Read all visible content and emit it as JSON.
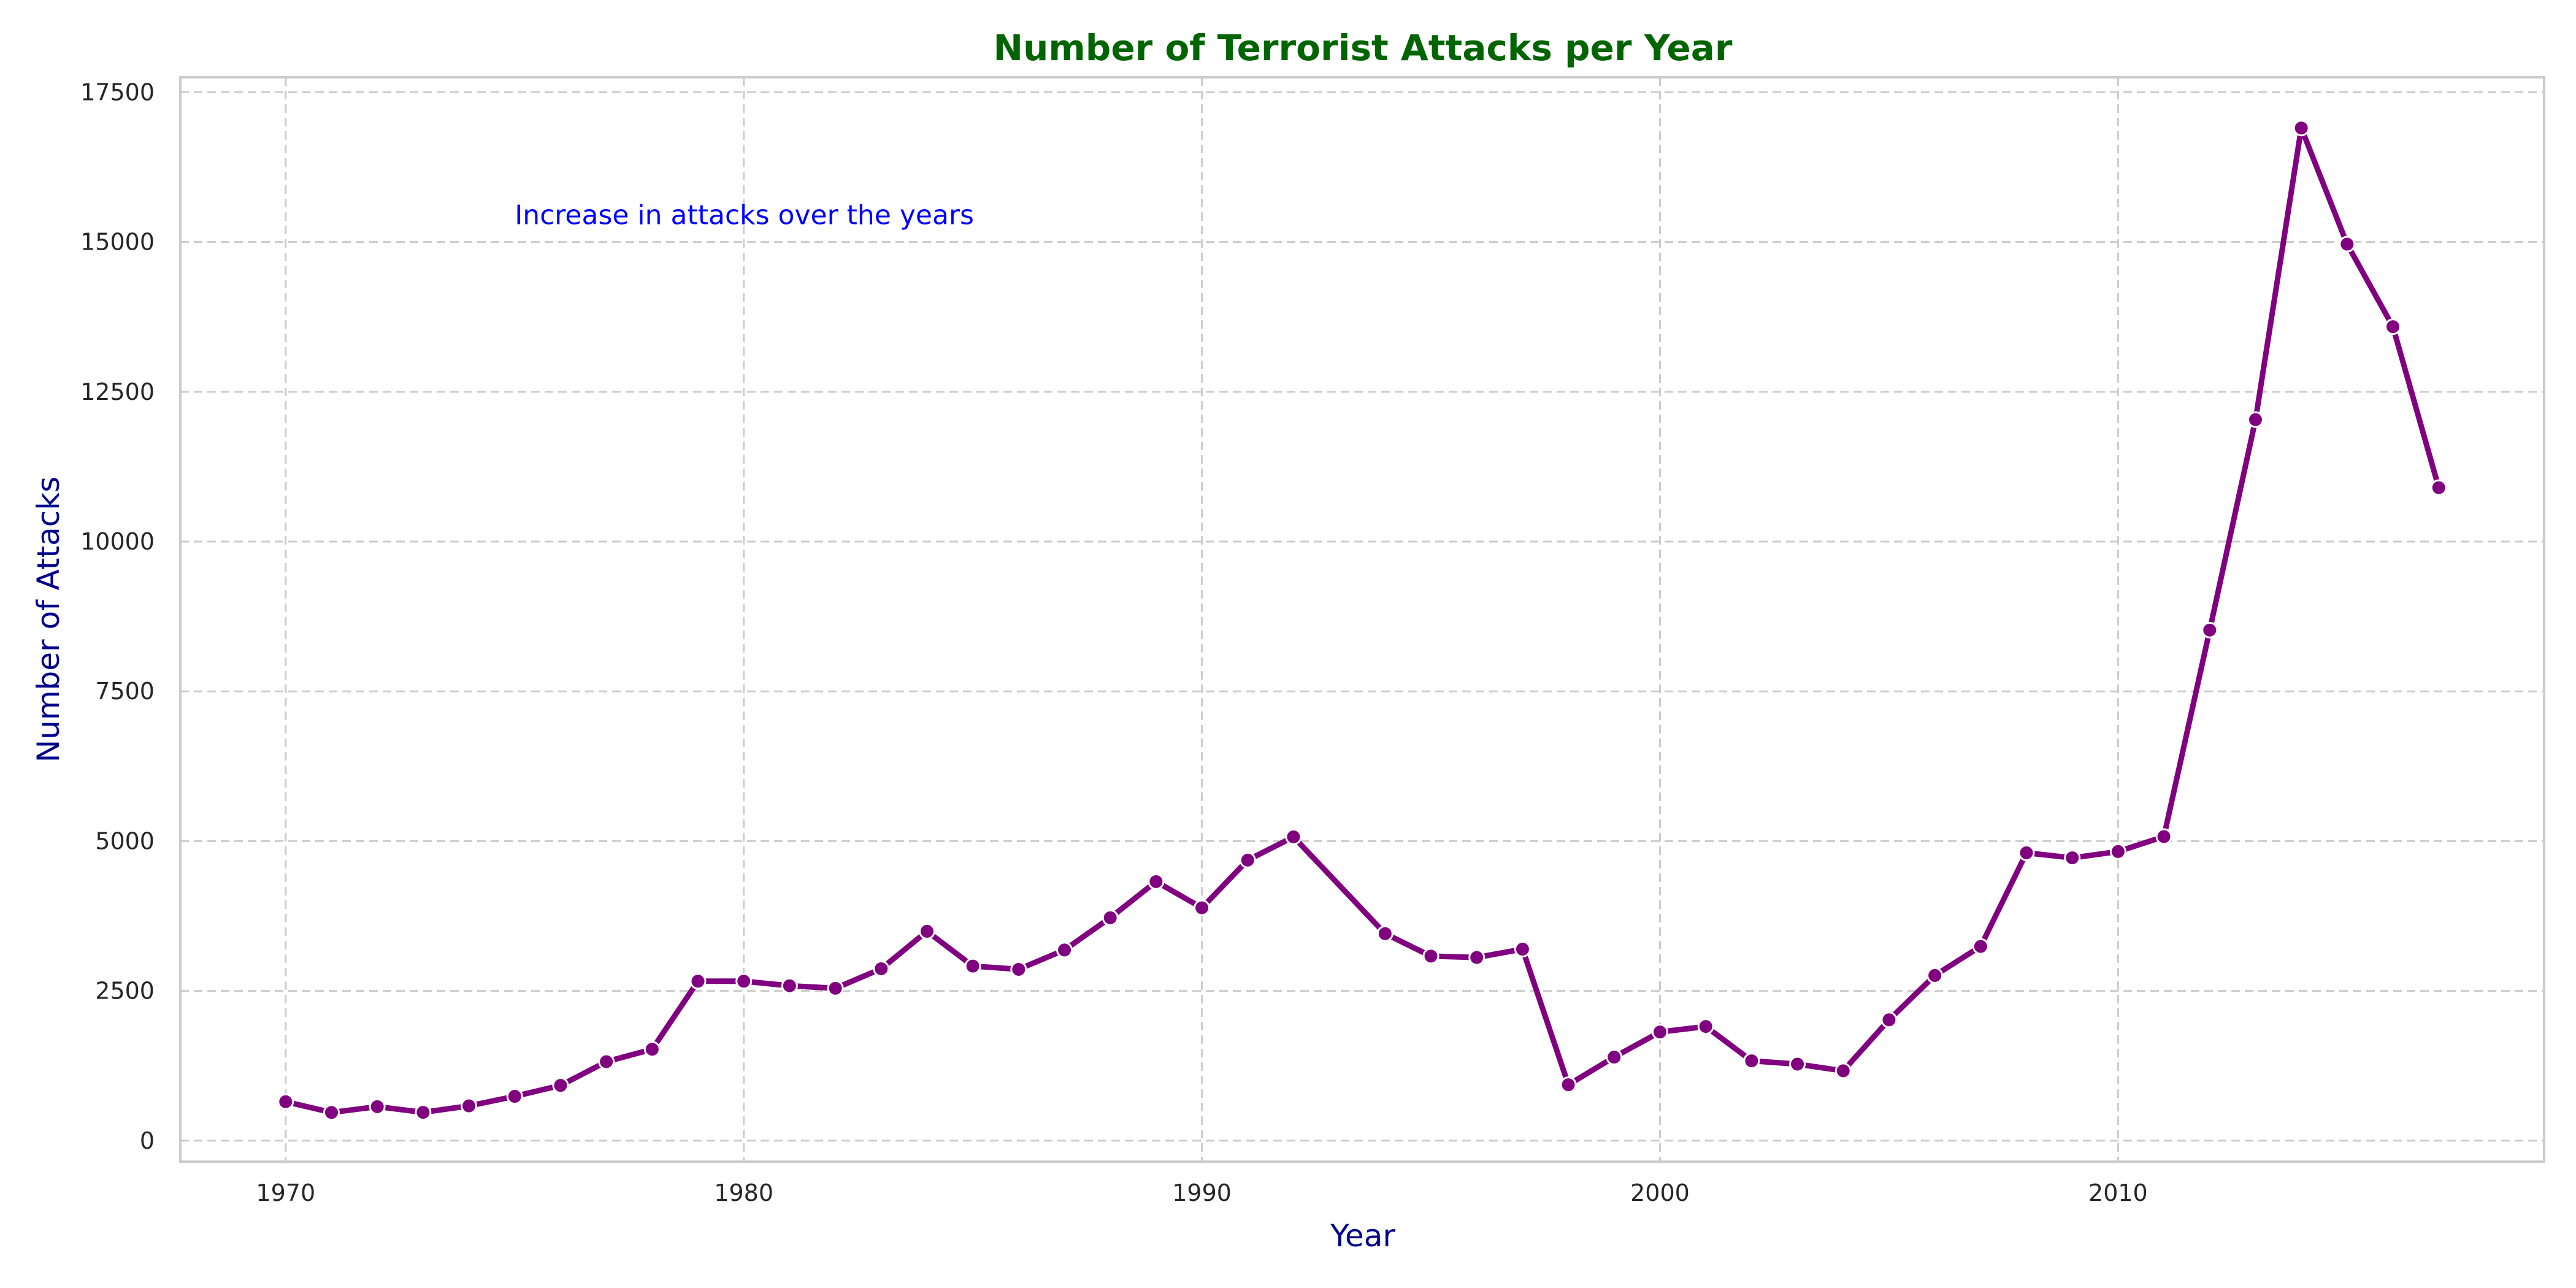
{
  "chart_data": {
    "type": "line",
    "title": "Number of Terrorist Attacks per Year",
    "xlabel": "Year",
    "ylabel": "Number of Attacks",
    "annotation": {
      "text": "Increase in attacks over the years",
      "x": 1975,
      "y": 15300
    },
    "xlim": [
      1967.7,
      2019.3
    ],
    "ylim": [
      -350,
      17750
    ],
    "xticks": [
      1970,
      1980,
      1990,
      2000,
      2010
    ],
    "yticks": [
      0,
      2500,
      5000,
      7500,
      10000,
      12500,
      15000,
      17500
    ],
    "grid": true,
    "series": [
      {
        "x": [
          1970,
          1971,
          1972,
          1973,
          1974,
          1975,
          1976,
          1977,
          1978,
          1979,
          1980,
          1981,
          1982,
          1983,
          1984,
          1985,
          1986,
          1987,
          1988,
          1989,
          1990,
          1991,
          1992,
          1994,
          1995,
          1996,
          1997,
          1998,
          1999,
          2000,
          2001,
          2002,
          2003,
          2004,
          2005,
          2006,
          2007,
          2008,
          2009,
          2010,
          2011,
          2012,
          2013,
          2014,
          2015,
          2016,
          2017
        ],
        "values": [
          651,
          471,
          568,
          473,
          581,
          740,
          923,
          1319,
          1526,
          2662,
          2662,
          2586,
          2544,
          2870,
          3495,
          2915,
          2860,
          3183,
          3721,
          4324,
          3887,
          4683,
          5071,
          3456,
          3081,
          3058,
          3197,
          934,
          1395,
          1814,
          1906,
          1333,
          1278,
          1166,
          2017,
          2758,
          3242,
          4805,
          4721,
          4826,
          5076,
          8522,
          12036,
          16903,
          14965,
          13587,
          10900
        ],
        "color": "#800080"
      }
    ],
    "colors": {
      "title": "#006400",
      "axis_title": "#00008b",
      "annotation": "#0000ff",
      "grid": "#cccccc",
      "frame": "#cccccc",
      "marker_edge": "#ffffff"
    }
  }
}
